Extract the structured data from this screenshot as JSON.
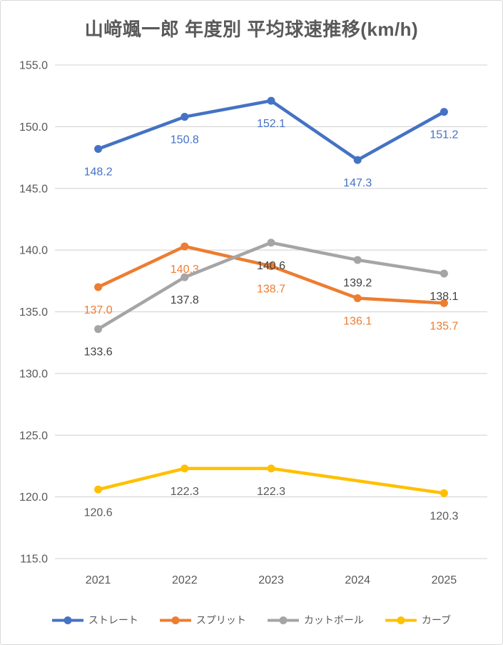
{
  "chart_data": {
    "type": "line",
    "title": "山﨑颯一郎 年度別 平均球速推移(km/h)",
    "categories": [
      "2021",
      "2022",
      "2023",
      "2024",
      "2025"
    ],
    "series": [
      {
        "key": "straight",
        "name": "ストレート",
        "color": "#4472C4",
        "label_color": "#4472C4",
        "values": [
          148.2,
          150.8,
          152.1,
          147.3,
          151.2
        ]
      },
      {
        "key": "split",
        "name": "スプリット",
        "color": "#ED7D31",
        "label_color": "#ED7D31",
        "values": [
          137.0,
          140.3,
          138.7,
          136.1,
          135.7
        ]
      },
      {
        "key": "cutball",
        "name": "カットボール",
        "color": "#A5A5A5",
        "label_color": "#404040",
        "values": [
          133.6,
          137.8,
          140.6,
          139.2,
          138.1
        ]
      },
      {
        "key": "curve",
        "name": "カーブ",
        "color": "#FFC000",
        "label_color": "#595959",
        "values": [
          120.6,
          122.3,
          122.3,
          null,
          120.3
        ]
      }
    ],
    "ylim": [
      115.0,
      155.0
    ],
    "ytick_step": 5.0,
    "ytick_labels": [
      "155.0",
      "150.0",
      "145.0",
      "140.0",
      "135.0",
      "130.0",
      "125.0",
      "120.0",
      "115.0"
    ],
    "grid": true,
    "legend_position": "bottom",
    "data_labels": true,
    "xlabel": "",
    "ylabel": ""
  },
  "style": {
    "gridline_color": "#D9D9D9",
    "axis_text_color": "#595959",
    "title_color": "#595959",
    "legend_text_color": "#595959",
    "border_color": "#D9D9D9",
    "background": "#FFFFFF"
  }
}
